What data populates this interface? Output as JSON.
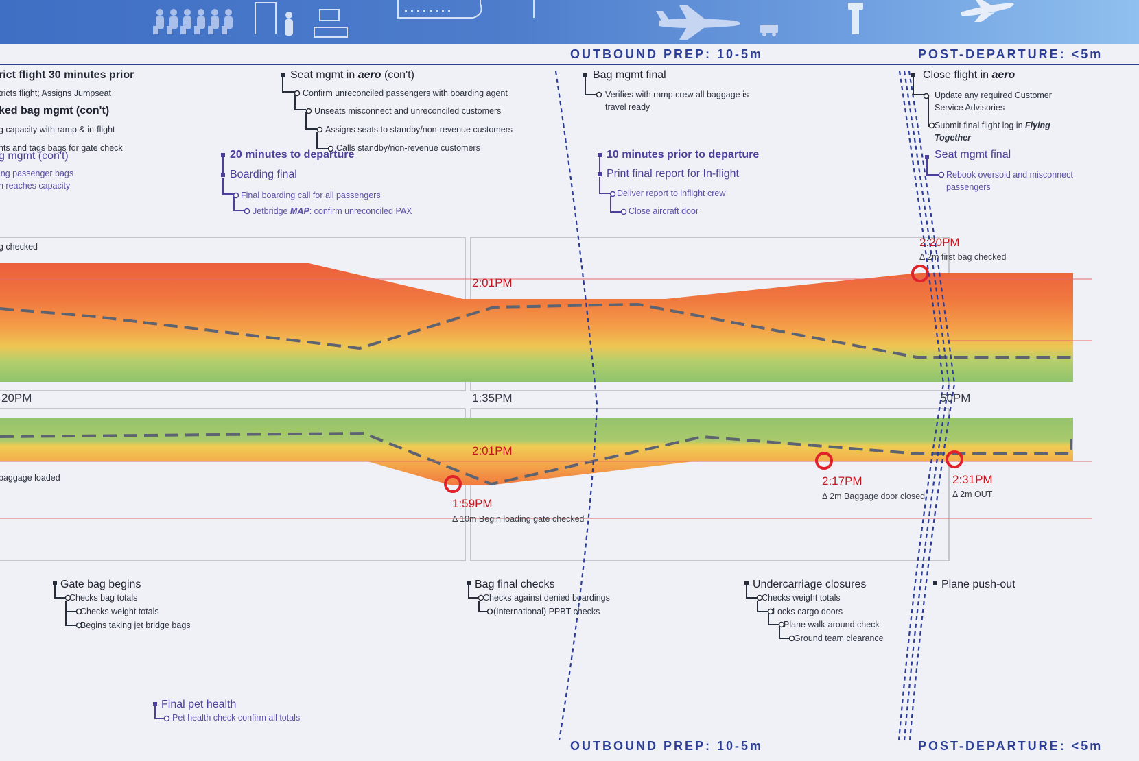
{
  "colors": {
    "accent_navy": "#2c3e95",
    "purple_text": "#4d3f9c",
    "marker_red": "#c6161f",
    "banner_start": "#3f6fc4",
    "banner_end": "#8fc0ee"
  },
  "icons": [
    "travelers-queue-icon",
    "security-gate-icon",
    "person-icon",
    "check-in-desk-icon",
    "jet-bridge-icon",
    "airplane-icon",
    "baggage-cart-icon",
    "control-tower-icon",
    "departing-airplane-icon"
  ],
  "phases": {
    "outbound_top": "OUTBOUND PREP: 10-5m",
    "post_top": "POST-DEPARTURE: <5m",
    "outbound_bottom": "OUTBOUND PREP: 10-5m",
    "post_bottom": "POST-DEPARTURE: <5m"
  },
  "top_tasks": {
    "col1": {
      "title": "rict flight 30 minutes prior",
      "line1": "tricts flight; Assigns Jumpseat",
      "title2": "ked bag mgmt (con't)",
      "line2": "g capacity with ramp & in-flight",
      "line3": "nts and tags bags for gate check",
      "ptitle": "g mgmt (con't)",
      "pline1": "ing passenger bags",
      "pline2": "n reaches capacity"
    },
    "col2": {
      "title_pre": "Seat mgmt in ",
      "title_em": "aero",
      "title_post": " (con't)",
      "l1": "Confirm unreconciled passengers with boarding agent",
      "l2": "Unseats misconnect and unreconciled customers",
      "l3": "Assigns seats to standby/non-revenue customers",
      "l4": "Calls standby/non-revenue customers",
      "p_title": "20 minutes to departure",
      "p_title2": "Boarding final",
      "p_l1": "Final boarding call for all passengers",
      "p_l2_pre": "Jetbridge ",
      "p_l2_em": "MAP",
      "p_l2_post": ": confirm unreconciled PAX"
    },
    "col3": {
      "title": "Bag mgmt final",
      "l1": "Verifies with ramp crew all baggage is",
      "l1b": "travel ready",
      "p_title": "10 minutes prior to departure",
      "p_title2": "Print final report for In-flight",
      "p_l1": "Deliver report to inflight crew",
      "p_l2": "Close aircraft door"
    },
    "col4": {
      "title_pre": "Close flight in ",
      "title_em": "aero",
      "l1": "Update any required Customer",
      "l1b": "Service Advisories",
      "l2_pre": "Submit final flight log in ",
      "l2_em": "Flying",
      "l2b_em": "Together",
      "p_title": "Seat mgmt final",
      "p_l1": "Rebook oversold and misconnect",
      "p_l1b": "passengers"
    }
  },
  "timeline": {
    "t1": "20PM",
    "t2": "1:35PM",
    "t3": "50PM"
  },
  "upper_chart": {
    "left_label": "g checked",
    "mark_label": "2:01PM",
    "event": {
      "time": "2:20PM",
      "note": "Δ 2m first bag checked"
    }
  },
  "lower_chart": {
    "left_label": "baggage loaded",
    "mark_label": "2:01PM",
    "events": [
      {
        "time": "1:59PM",
        "note": "Δ 10m Begin loading gate checked"
      },
      {
        "time": "2:17PM",
        "note": "Δ 2m Baggage door closed"
      },
      {
        "time": "2:31PM",
        "note": "Δ 2m OUT"
      }
    ]
  },
  "bottom_tasks": {
    "gate": {
      "title": "Gate bag begins",
      "l1": "Checks bag totals",
      "l2": "Checks weight totals",
      "l3": "Begins taking jet bridge bags"
    },
    "pet": {
      "title": "Final pet health",
      "l1": "Pet health check confirm all totals"
    },
    "bagfinal": {
      "title": "Bag final checks",
      "l1": "Checks against denied boardings",
      "l2": "(International) PPBT checks"
    },
    "under": {
      "title": "Undercarriage closures",
      "l1": "Checks weight totals",
      "l2": "Locks cargo doors",
      "l3": "Plane walk-around check",
      "l4": "Ground team clearance"
    },
    "push": {
      "title": "Plane push-out"
    }
  }
}
